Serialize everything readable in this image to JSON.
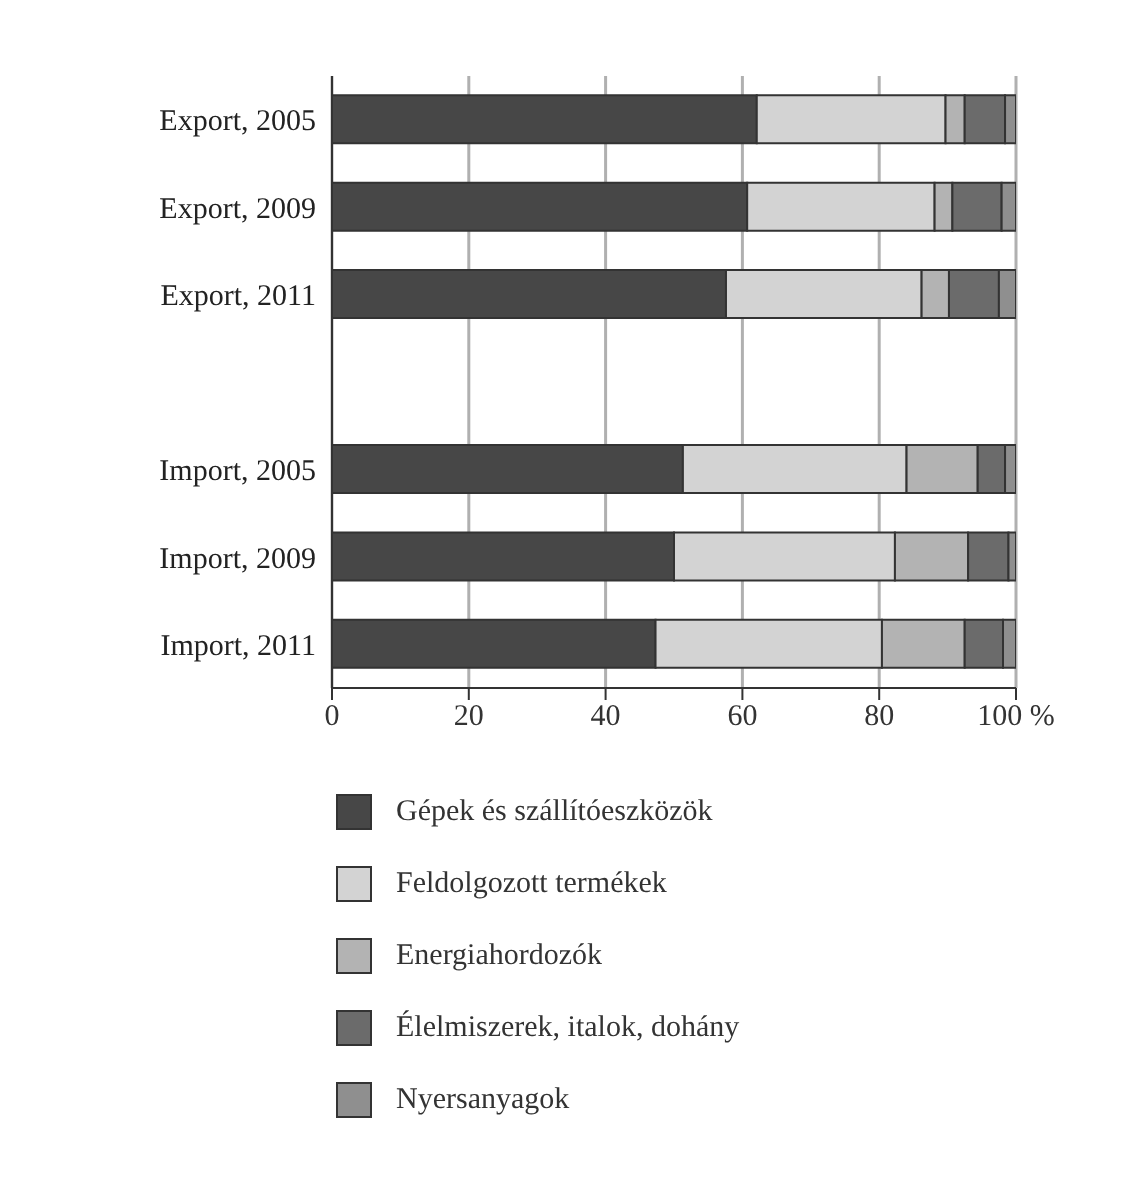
{
  "chart_data": {
    "type": "bar",
    "orientation": "horizontal",
    "stacked": true,
    "categories": [
      "Export, 2005",
      "Export, 2009",
      "Export, 2011",
      null,
      "Import, 2005",
      "Import, 2009",
      "Import, 2011"
    ],
    "series": [
      {
        "name": "Gépek és szállítóeszközök",
        "color": "#474747",
        "values": [
          62.1,
          60.7,
          57.6,
          null,
          51.3,
          50.0,
          47.3
        ]
      },
      {
        "name": "Feldolgozott termékek",
        "color": "#d3d3d3",
        "values": [
          27.6,
          27.4,
          28.6,
          null,
          32.7,
          32.3,
          33.1
        ]
      },
      {
        "name": "Energiahordozók",
        "color": "#b3b3b3",
        "values": [
          2.8,
          2.6,
          4.0,
          null,
          10.4,
          10.7,
          12.1
        ]
      },
      {
        "name": "Élelmiszerek, italok, dohány",
        "color": "#6b6b6b",
        "values": [
          5.9,
          7.2,
          7.3,
          null,
          4.0,
          5.9,
          5.6
        ]
      },
      {
        "name": "Nyersanyagok",
        "color": "#8f8f8f",
        "values": [
          1.6,
          2.1,
          2.5,
          null,
          1.6,
          1.1,
          1.9
        ]
      }
    ],
    "xlim": [
      0,
      100
    ],
    "xticks": [
      0,
      20,
      40,
      60,
      80,
      {
        "value": 100,
        "label": "100 %"
      }
    ],
    "grid": "x",
    "legend": "bottom"
  }
}
